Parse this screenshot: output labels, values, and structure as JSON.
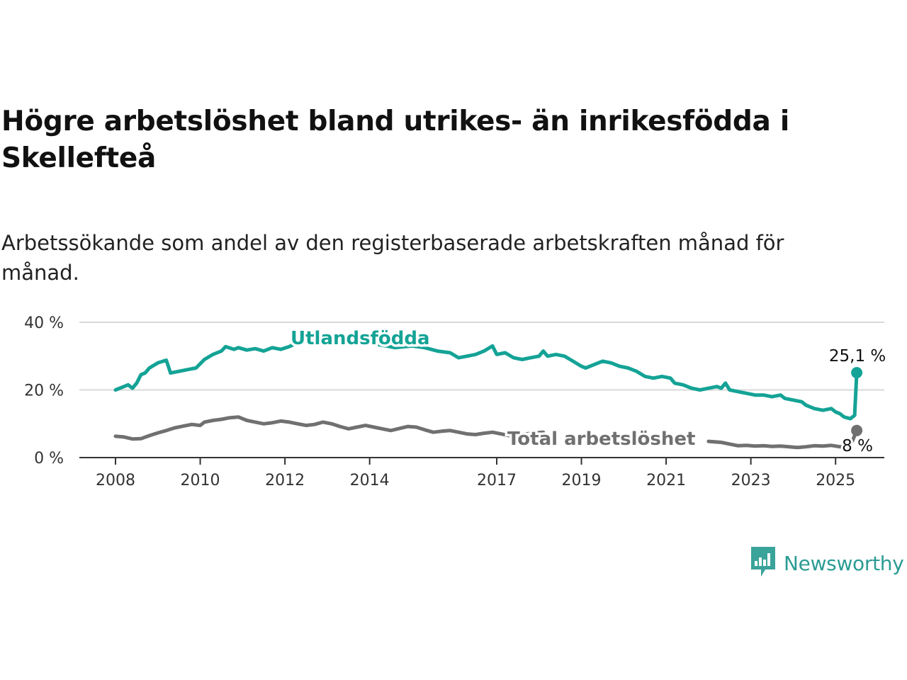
{
  "title": "Högre arbetslöshet bland utrikes- än inrikesfödda i Skellefteå",
  "subtitle": "Arbetssökande som andel av den registerbaserade arbetskraften månad för månad.",
  "brand": {
    "name": "Newsworthy",
    "icon": "newsworthy-logo-icon"
  },
  "colors": {
    "utlandsfodda": "#14a396",
    "total": "#707070",
    "grid": "#d9d9d9",
    "axis": "#333333"
  },
  "chart_data": {
    "type": "line",
    "ylim": [
      0,
      40
    ],
    "yticks": [
      0,
      20,
      40
    ],
    "ytick_labels": [
      "0 %",
      "20 %",
      "40 %"
    ],
    "xlim": [
      2008,
      2025.9
    ],
    "xticks": [
      2008,
      2010,
      2012,
      2014,
      2017,
      2019,
      2021,
      2023,
      2025
    ],
    "xtick_labels": [
      "2008",
      "2010",
      "2012",
      "2014",
      "2017",
      "2019",
      "2021",
      "2023",
      "2025"
    ],
    "grid": true,
    "series": [
      {
        "name": "Utlandsfödda",
        "end_label": "25,1 %",
        "points": [
          [
            2008.0,
            20.0
          ],
          [
            2008.2,
            21.0
          ],
          [
            2008.3,
            21.5
          ],
          [
            2008.4,
            20.5
          ],
          [
            2008.5,
            22.0
          ],
          [
            2008.6,
            24.5
          ],
          [
            2008.7,
            25.0
          ],
          [
            2008.8,
            26.5
          ],
          [
            2009.0,
            28.0
          ],
          [
            2009.2,
            28.8
          ],
          [
            2009.3,
            25.0
          ],
          [
            2009.5,
            25.5
          ],
          [
            2009.7,
            26.0
          ],
          [
            2009.9,
            26.5
          ],
          [
            2010.1,
            29.0
          ],
          [
            2010.3,
            30.5
          ],
          [
            2010.5,
            31.5
          ],
          [
            2010.6,
            32.8
          ],
          [
            2010.8,
            32.0
          ],
          [
            2010.9,
            32.5
          ],
          [
            2011.1,
            31.8
          ],
          [
            2011.3,
            32.2
          ],
          [
            2011.5,
            31.5
          ],
          [
            2011.7,
            32.5
          ],
          [
            2011.9,
            32.0
          ],
          [
            2012.1,
            32.8
          ],
          [
            2012.3,
            34.0
          ],
          [
            2012.5,
            35.0
          ],
          [
            2012.8,
            35.5
          ],
          [
            2012.85,
            34.0
          ],
          [
            2013.5,
            34.2
          ],
          [
            2014.0,
            33.8
          ],
          [
            2014.4,
            33.0
          ],
          [
            2014.6,
            32.5
          ],
          [
            2015.0,
            33.0
          ],
          [
            2015.3,
            32.5
          ],
          [
            2015.6,
            31.5
          ],
          [
            2015.9,
            31.0
          ],
          [
            2016.1,
            29.5
          ],
          [
            2016.3,
            30.0
          ],
          [
            2016.5,
            30.5
          ],
          [
            2016.7,
            31.5
          ],
          [
            2016.9,
            33.0
          ],
          [
            2017.0,
            30.5
          ],
          [
            2017.2,
            31.0
          ],
          [
            2017.4,
            29.5
          ],
          [
            2017.6,
            29.0
          ],
          [
            2017.8,
            29.5
          ],
          [
            2018.0,
            30.0
          ],
          [
            2018.1,
            31.5
          ],
          [
            2018.2,
            30.0
          ],
          [
            2018.4,
            30.5
          ],
          [
            2018.6,
            30.0
          ],
          [
            2018.8,
            28.5
          ],
          [
            2019.0,
            27.0
          ],
          [
            2019.1,
            26.5
          ],
          [
            2019.3,
            27.5
          ],
          [
            2019.5,
            28.5
          ],
          [
            2019.7,
            28.0
          ],
          [
            2019.9,
            27.0
          ],
          [
            2020.1,
            26.5
          ],
          [
            2020.3,
            25.5
          ],
          [
            2020.5,
            24.0
          ],
          [
            2020.7,
            23.5
          ],
          [
            2020.9,
            24.0
          ],
          [
            2021.1,
            23.5
          ],
          [
            2021.2,
            22.0
          ],
          [
            2021.4,
            21.5
          ],
          [
            2021.6,
            20.5
          ],
          [
            2021.8,
            20.0
          ],
          [
            2022.0,
            20.5
          ],
          [
            2022.2,
            21.0
          ],
          [
            2022.3,
            20.5
          ],
          [
            2022.4,
            22.0
          ],
          [
            2022.5,
            20.0
          ],
          [
            2022.7,
            19.5
          ],
          [
            2022.9,
            19.0
          ],
          [
            2023.1,
            18.5
          ],
          [
            2023.3,
            18.5
          ],
          [
            2023.5,
            18.0
          ],
          [
            2023.7,
            18.5
          ],
          [
            2023.8,
            17.5
          ],
          [
            2024.0,
            17.0
          ],
          [
            2024.2,
            16.5
          ],
          [
            2024.3,
            15.5
          ],
          [
            2024.5,
            14.5
          ],
          [
            2024.7,
            14.0
          ],
          [
            2024.9,
            14.5
          ],
          [
            2025.0,
            13.5
          ],
          [
            2025.1,
            13.0
          ],
          [
            2025.2,
            12.0
          ],
          [
            2025.35,
            11.5
          ],
          [
            2025.45,
            12.5
          ],
          [
            2025.5,
            25.1
          ]
        ]
      },
      {
        "name": "Total arbetslöshet",
        "end_label": "8 %",
        "points": [
          [
            2008.0,
            6.3
          ],
          [
            2008.2,
            6.1
          ],
          [
            2008.3,
            5.8
          ],
          [
            2008.4,
            5.5
          ],
          [
            2008.6,
            5.6
          ],
          [
            2008.8,
            6.5
          ],
          [
            2009.0,
            7.3
          ],
          [
            2009.2,
            8.0
          ],
          [
            2009.4,
            8.8
          ],
          [
            2009.6,
            9.3
          ],
          [
            2009.8,
            9.8
          ],
          [
            2010.0,
            9.5
          ],
          [
            2010.1,
            10.5
          ],
          [
            2010.3,
            11.0
          ],
          [
            2010.5,
            11.3
          ],
          [
            2010.7,
            11.8
          ],
          [
            2010.9,
            12.0
          ],
          [
            2011.1,
            11.0
          ],
          [
            2011.3,
            10.5
          ],
          [
            2011.5,
            10.0
          ],
          [
            2011.7,
            10.3
          ],
          [
            2011.9,
            10.8
          ],
          [
            2012.1,
            10.5
          ],
          [
            2012.3,
            10.0
          ],
          [
            2012.5,
            9.5
          ],
          [
            2012.7,
            9.8
          ],
          [
            2012.9,
            10.5
          ],
          [
            2013.1,
            10.0
          ],
          [
            2013.3,
            9.2
          ],
          [
            2013.5,
            8.5
          ],
          [
            2013.7,
            9.0
          ],
          [
            2013.9,
            9.5
          ],
          [
            2014.1,
            9.0
          ],
          [
            2014.3,
            8.5
          ],
          [
            2014.5,
            8.0
          ],
          [
            2014.7,
            8.6
          ],
          [
            2014.9,
            9.2
          ],
          [
            2015.1,
            9.0
          ],
          [
            2015.3,
            8.2
          ],
          [
            2015.5,
            7.5
          ],
          [
            2015.7,
            7.8
          ],
          [
            2015.9,
            8.0
          ],
          [
            2016.1,
            7.5
          ],
          [
            2016.3,
            7.0
          ],
          [
            2016.5,
            6.8
          ],
          [
            2016.7,
            7.2
          ],
          [
            2016.9,
            7.5
          ],
          [
            2017.1,
            7.0
          ],
          [
            2017.3,
            6.5
          ],
          [
            2017.5,
            6.8
          ],
          [
            2017.7,
            7.0
          ],
          [
            2017.9,
            7.3
          ],
          [
            2018.1,
            7.5
          ],
          [
            2022.0,
            4.8
          ],
          [
            2022.3,
            4.5
          ],
          [
            2022.5,
            4.0
          ],
          [
            2022.7,
            3.5
          ],
          [
            2022.9,
            3.6
          ],
          [
            2023.1,
            3.4
          ],
          [
            2023.3,
            3.5
          ],
          [
            2023.5,
            3.3
          ],
          [
            2023.7,
            3.4
          ],
          [
            2023.9,
            3.2
          ],
          [
            2024.1,
            3.0
          ],
          [
            2024.3,
            3.2
          ],
          [
            2024.5,
            3.5
          ],
          [
            2024.7,
            3.4
          ],
          [
            2024.9,
            3.6
          ],
          [
            2025.1,
            3.2
          ],
          [
            2025.3,
            3.4
          ],
          [
            2025.4,
            5.0
          ],
          [
            2025.5,
            8.0
          ]
        ]
      }
    ]
  }
}
